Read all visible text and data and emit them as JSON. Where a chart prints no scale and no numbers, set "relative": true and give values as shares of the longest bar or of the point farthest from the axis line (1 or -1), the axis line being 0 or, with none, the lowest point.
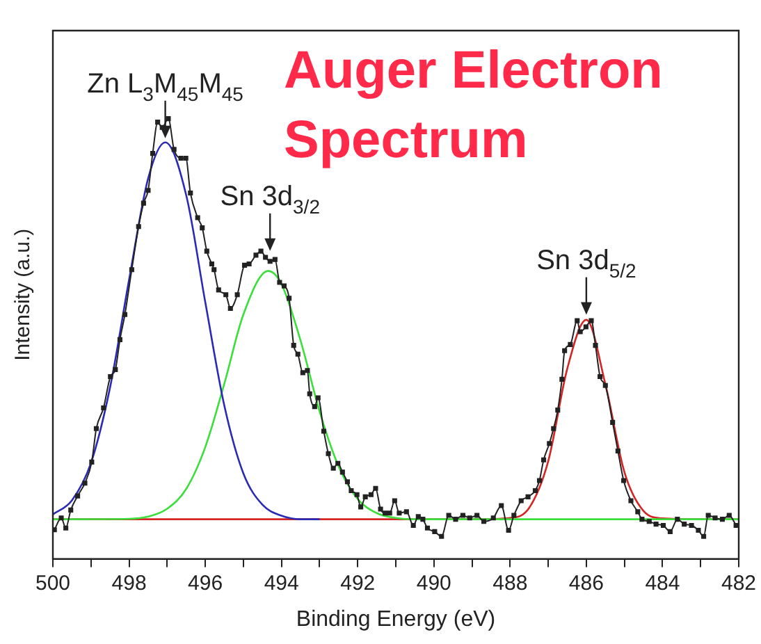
{
  "chart_data": {
    "type": "line",
    "title": "Auger Electron Spectrum",
    "xlabel": "Binding Energy (eV)",
    "ylabel": "Intensity (a.u.)",
    "relative": true,
    "xlim": [
      500,
      482
    ],
    "xticks": [
      500,
      {
        "value": 499,
        "label": null
      },
      498,
      {
        "value": 497,
        "label": null
      },
      496,
      {
        "value": 495,
        "label": null
      },
      494,
      {
        "value": 493,
        "label": null
      },
      492,
      {
        "value": 491,
        "label": null
      },
      490,
      {
        "value": 489,
        "label": null
      },
      488,
      {
        "value": 487,
        "label": null
      },
      486,
      {
        "value": 485,
        "label": null
      },
      484,
      {
        "value": 483,
        "label": null
      },
      482
    ],
    "grid": false,
    "annotations": [
      {
        "text": "Zn L$_{3}$M$_{45}$M$_{45}$",
        "x": 497.05,
        "y": 0.946
      },
      {
        "text": "Sn 3d$_{3/2}$",
        "x": 494.3,
        "y": 0.69
      },
      {
        "text": "Sn 3d$_{5/2}$",
        "x": 486.0,
        "y": 0.545
      }
    ],
    "series": [
      {
        "color": "#222222",
        "marker": "square",
        "x": [
          499.96,
          499.78,
          499.66,
          499.53,
          499.35,
          499.16,
          498.98,
          498.86,
          498.67,
          498.49,
          498.36,
          498.24,
          498.11,
          497.93,
          497.75,
          497.62,
          497.5,
          497.38,
          497.25,
          497.13,
          496.97,
          496.82,
          496.64,
          496.51,
          496.39,
          496.2,
          496.08,
          495.96,
          495.83,
          495.77,
          495.65,
          495.46,
          495.34,
          495.16,
          494.97,
          494.85,
          494.67,
          494.54,
          494.42,
          494.3,
          494.17,
          494.05,
          493.93,
          493.8,
          493.68,
          493.57,
          493.44,
          493.32,
          493.26,
          493.13,
          493.04,
          492.89,
          492.77,
          492.64,
          492.52,
          492.4,
          492.27,
          492.17,
          492.02,
          491.92,
          491.8,
          491.65,
          491.53,
          491.4,
          491.28,
          491.16,
          491.03,
          490.91,
          490.72,
          490.54,
          490.41,
          490.29,
          490.17,
          489.98,
          489.8,
          489.61,
          489.43,
          489.24,
          489.06,
          488.87,
          488.69,
          488.44,
          488.23,
          488.04,
          487.9,
          487.71,
          487.53,
          487.34,
          487.23,
          487.12,
          486.97,
          486.86,
          486.75,
          486.64,
          486.57,
          486.42,
          486.24,
          486.16,
          486.01,
          485.87,
          485.76,
          485.64,
          485.5,
          485.31,
          485.17,
          485.02,
          484.83,
          484.65,
          484.54,
          484.35,
          484.17,
          483.98,
          483.8,
          483.61,
          483.43,
          483.24,
          483.06,
          482.92,
          482.8,
          482.62,
          482.43,
          482.25,
          482.07
        ],
        "values": [
          0.066,
          0.093,
          0.07,
          0.111,
          0.143,
          0.172,
          0.22,
          0.296,
          0.343,
          0.414,
          0.43,
          0.498,
          0.555,
          0.657,
          0.755,
          0.808,
          0.837,
          0.921,
          0.992,
          0.98,
          1.0,
          0.93,
          0.91,
          0.91,
          0.831,
          0.775,
          0.752,
          0.699,
          0.67,
          0.657,
          0.611,
          0.6,
          0.569,
          0.6,
          0.667,
          0.67,
          0.69,
          0.699,
          0.685,
          0.676,
          0.68,
          0.628,
          0.62,
          0.592,
          0.485,
          0.465,
          0.423,
          0.428,
          0.375,
          0.346,
          0.366,
          0.29,
          0.239,
          0.206,
          0.217,
          0.197,
          0.175,
          0.155,
          0.146,
          0.118,
          0.141,
          0.146,
          0.16,
          0.113,
          0.104,
          0.104,
          0.132,
          0.104,
          0.107,
          0.076,
          0.096,
          0.09,
          0.07,
          0.062,
          0.051,
          0.099,
          0.09,
          0.099,
          0.093,
          0.099,
          0.085,
          0.093,
          0.121,
          0.065,
          0.099,
          0.132,
          0.141,
          0.155,
          0.178,
          0.225,
          0.262,
          0.296,
          0.338,
          0.408,
          0.473,
          0.487,
          0.541,
          0.516,
          0.527,
          0.541,
          0.485,
          0.414,
          0.394,
          0.31,
          0.245,
          0.178,
          0.132,
          0.107,
          0.09,
          0.085,
          0.079,
          0.076,
          0.062,
          0.09,
          0.079,
          0.076,
          0.065,
          0.051,
          0.099,
          0.093,
          0.09,
          0.099,
          0.076
        ]
      },
      {
        "color": "#2a2ab4",
        "marker": "none",
        "x": [
          500,
          499.5,
          499,
          498.5,
          498,
          497.5,
          497.05,
          496.5,
          496,
          495.5,
          495,
          494.5,
          494,
          493.5,
          493
        ],
        "values": [
          0.101,
          0.133,
          0.218,
          0.389,
          0.634,
          0.864,
          0.946,
          0.826,
          0.583,
          0.348,
          0.194,
          0.123,
          0.098,
          0.09,
          0.09
        ]
      },
      {
        "color": "#3adf3a",
        "marker": "none",
        "x": [
          500,
          498,
          497.5,
          497,
          496.5,
          496,
          495.5,
          495,
          494.35,
          494,
          493.5,
          493,
          492.5,
          492,
          491.5,
          491,
          490.5,
          482
        ],
        "values": [
          0.09,
          0.091,
          0.096,
          0.114,
          0.159,
          0.254,
          0.398,
          0.555,
          0.654,
          0.624,
          0.496,
          0.335,
          0.21,
          0.136,
          0.104,
          0.093,
          0.09,
          0.09
        ]
      },
      {
        "color": "#d42424",
        "marker": "none",
        "x": [
          500,
          489,
          488,
          487.5,
          487,
          486.5,
          486,
          485.5,
          485,
          484.5,
          484,
          483,
          482
        ],
        "values": [
          0.09,
          0.09,
          0.093,
          0.116,
          0.222,
          0.432,
          0.543,
          0.397,
          0.197,
          0.109,
          0.092,
          0.09,
          0.09
        ]
      }
    ]
  }
}
